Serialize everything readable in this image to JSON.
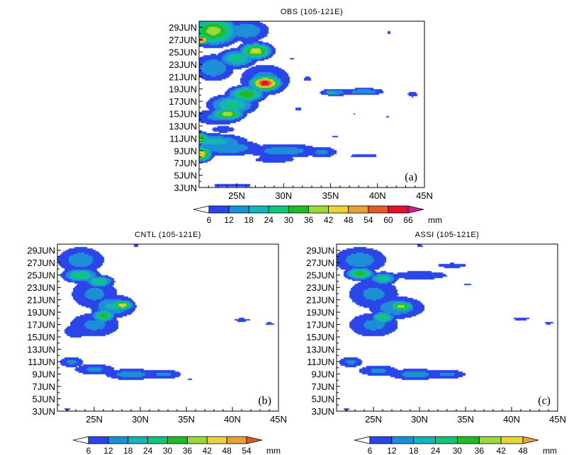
{
  "figure": {
    "colors": {
      "levels": [
        "#2b46e8",
        "#1e8fd6",
        "#14b4b8",
        "#10c47c",
        "#22b826",
        "#9bd93a",
        "#e8d43a",
        "#e8a038",
        "#e05a28",
        "#e0132c",
        "#d81b8c"
      ]
    },
    "panels": [
      {
        "id": "a",
        "title": "OBS (105-121E)",
        "label": "(a)",
        "y_ticks": [
          "3JUN",
          "5JUN",
          "7JUN",
          "9JUN",
          "11JUN",
          "13JUN",
          "15JUN",
          "17JUN",
          "19JUN",
          "21JUN",
          "23JUN",
          "25JUN",
          "27JUN",
          "29JUN"
        ],
        "x_ticks": [
          "25N",
          "30N",
          "35N",
          "40N",
          "45N"
        ],
        "colorbar": {
          "labels": [
            "6",
            "12",
            "18",
            "24",
            "30",
            "36",
            "42",
            "48",
            "54",
            "60",
            "66"
          ],
          "unit": "mm"
        }
      },
      {
        "id": "b",
        "title": "CNTL (105-121E)",
        "label": "(b)",
        "y_ticks": [
          "3JUN",
          "5JUN",
          "7JUN",
          "9JUN",
          "11JUN",
          "13JUN",
          "15JUN",
          "17JUN",
          "19JUN",
          "21JUN",
          "23JUN",
          "25JUN",
          "27JUN",
          "29JUN"
        ],
        "x_ticks": [
          "25N",
          "30N",
          "35N",
          "40N",
          "45N"
        ],
        "colorbar": {
          "labels": [
            "6",
            "12",
            "18",
            "24",
            "30",
            "36",
            "42",
            "48",
            "54"
          ],
          "unit": "mm"
        }
      },
      {
        "id": "c",
        "title": "ASSI (105-121E)",
        "label": "(c)",
        "y_ticks": [
          "3JUN",
          "5JUN",
          "7JUN",
          "9JUN",
          "11JUN",
          "13JUN",
          "15JUN",
          "17JUN",
          "19JUN",
          "21JUN",
          "23JUN",
          "25JUN",
          "27JUN",
          "29JUN"
        ],
        "x_ticks": [
          "25N",
          "30N",
          "35N",
          "40N",
          "45N"
        ],
        "colorbar": {
          "labels": [
            "6",
            "12",
            "18",
            "24",
            "30",
            "36",
            "42",
            "48"
          ],
          "unit": "mm"
        }
      }
    ]
  },
  "chart_data": [
    {
      "type": "heatmap",
      "title": "OBS (105-121E)",
      "xlabel": "",
      "ylabel": "",
      "xlim": [
        21,
        45
      ],
      "ylim": [
        "3JUN",
        "30JUN"
      ],
      "levels": [
        6,
        12,
        18,
        24,
        30,
        36,
        42,
        48,
        54,
        60,
        66
      ],
      "unit": "mm",
      "blobs": [
        {
          "lat": 22.5,
          "day": 28.5,
          "dlat": 2.0,
          "dday": 1.8,
          "v": 40
        },
        {
          "lat": 21.0,
          "day": 27,
          "dlat": 0.9,
          "dday": 0.5,
          "v": 62
        },
        {
          "lat": 26.0,
          "day": 28.5,
          "dlat": 2.0,
          "dday": 1.5,
          "v": 18
        },
        {
          "lat": 27.0,
          "day": 25.2,
          "dlat": 1.3,
          "dday": 1.0,
          "v": 44
        },
        {
          "lat": 25.0,
          "day": 24.0,
          "dlat": 1.6,
          "dday": 1.2,
          "v": 26
        },
        {
          "lat": 22.5,
          "day": 22.5,
          "dlat": 1.8,
          "dday": 1.8,
          "v": 18
        },
        {
          "lat": 28.0,
          "day": 20.0,
          "dlat": 1.2,
          "dday": 0.9,
          "v": 66
        },
        {
          "lat": 28.0,
          "day": 20.5,
          "dlat": 2.3,
          "dday": 2.2,
          "v": 16
        },
        {
          "lat": 26.0,
          "day": 18.2,
          "dlat": 1.5,
          "dday": 1.0,
          "v": 36
        },
        {
          "lat": 24.5,
          "day": 16.5,
          "dlat": 2.0,
          "dday": 1.3,
          "v": 26
        },
        {
          "lat": 24.0,
          "day": 15.0,
          "dlat": 1.3,
          "dday": 0.8,
          "v": 42
        },
        {
          "lat": 23.0,
          "day": 14.5,
          "dlat": 2.5,
          "dday": 1.2,
          "v": 14
        },
        {
          "lat": 23.5,
          "day": 12.5,
          "dlat": 1.6,
          "dday": 0.7,
          "v": 9
        },
        {
          "lat": 22.5,
          "day": 10.5,
          "dlat": 2.8,
          "dday": 1.0,
          "v": 22
        },
        {
          "lat": 21.0,
          "day": 11.0,
          "dlat": 0.8,
          "dday": 0.8,
          "v": 40
        },
        {
          "lat": 21.0,
          "day": 8.5,
          "dlat": 1.0,
          "dday": 0.9,
          "v": 50
        },
        {
          "lat": 24.0,
          "day": 9.5,
          "dlat": 3.0,
          "dday": 1.1,
          "v": 18
        },
        {
          "lat": 30.0,
          "day": 9.0,
          "dlat": 3.5,
          "dday": 1.0,
          "v": 16
        },
        {
          "lat": 34.0,
          "day": 8.8,
          "dlat": 1.5,
          "dday": 0.8,
          "v": 14
        },
        {
          "lat": 29.0,
          "day": 7.6,
          "dlat": 2.5,
          "dday": 0.6,
          "v": 10
        },
        {
          "lat": 38.5,
          "day": 8.2,
          "dlat": 2.0,
          "dday": 0.4,
          "v": 9
        },
        {
          "lat": 24.5,
          "day": 3.4,
          "dlat": 3.5,
          "dday": 0.4,
          "v": 8
        },
        {
          "lat": 31.5,
          "day": 15.8,
          "dlat": 0.6,
          "dday": 0.35,
          "v": 8
        },
        {
          "lat": 35.5,
          "day": 18.5,
          "dlat": 1.5,
          "dday": 0.5,
          "v": 16
        },
        {
          "lat": 38.5,
          "day": 18.6,
          "dlat": 1.8,
          "dday": 0.5,
          "v": 18
        },
        {
          "lat": 35.0,
          "day": 18.5,
          "dlat": 0.6,
          "dday": 0.3,
          "v": 26
        },
        {
          "lat": 43.7,
          "day": 18.2,
          "dlat": 0.7,
          "dday": 0.6,
          "v": 9
        },
        {
          "lat": 32.5,
          "day": 20.7,
          "dlat": 0.7,
          "dday": 0.5,
          "v": 8
        },
        {
          "lat": 30.8,
          "day": 24.0,
          "dlat": 0.5,
          "dday": 0.25,
          "v": 7
        },
        {
          "lat": 41.2,
          "day": 28.2,
          "dlat": 0.4,
          "dday": 0.3,
          "v": 8
        },
        {
          "lat": 37.5,
          "day": 14.9,
          "dlat": 0.5,
          "dday": 0.25,
          "v": 7
        },
        {
          "lat": 41.0,
          "day": 14.6,
          "dlat": 0.4,
          "dday": 0.25,
          "v": 7
        },
        {
          "lat": 35.5,
          "day": 11.4,
          "dlat": 1.0,
          "dday": 0.2,
          "v": 7
        }
      ]
    },
    {
      "type": "heatmap",
      "title": "CNTL (105-121E)",
      "xlabel": "",
      "ylabel": "",
      "xlim": [
        21,
        45
      ],
      "ylim": [
        "3JUN",
        "30JUN"
      ],
      "levels": [
        6,
        12,
        18,
        24,
        30,
        36,
        42,
        48,
        54
      ],
      "unit": "mm",
      "gap_days": [
        13.0,
        14.0
      ],
      "blobs": [
        {
          "lat": 23.5,
          "day": 27.5,
          "dlat": 2.2,
          "dday": 1.8,
          "v": 16
        },
        {
          "lat": 23.5,
          "day": 25.0,
          "dlat": 1.5,
          "dday": 0.9,
          "v": 30
        },
        {
          "lat": 25.5,
          "day": 24.0,
          "dlat": 1.2,
          "dday": 0.8,
          "v": 28
        },
        {
          "lat": 25.0,
          "day": 22.0,
          "dlat": 2.3,
          "dday": 2.2,
          "v": 14
        },
        {
          "lat": 28.0,
          "day": 20.2,
          "dlat": 0.9,
          "dday": 0.6,
          "v": 46
        },
        {
          "lat": 27.0,
          "day": 20.0,
          "dlat": 2.0,
          "dday": 1.5,
          "v": 20
        },
        {
          "lat": 26.0,
          "day": 18.5,
          "dlat": 1.0,
          "dday": 0.8,
          "v": 34
        },
        {
          "lat": 25.0,
          "day": 17.0,
          "dlat": 2.5,
          "dday": 1.8,
          "v": 14
        },
        {
          "lat": 23.0,
          "day": 16.0,
          "dlat": 1.5,
          "dday": 1.3,
          "v": 10
        },
        {
          "lat": 22.5,
          "day": 11.0,
          "dlat": 1.2,
          "dday": 0.8,
          "v": 14
        },
        {
          "lat": 25.0,
          "day": 9.8,
          "dlat": 2.0,
          "dday": 0.8,
          "v": 14
        },
        {
          "lat": 29.0,
          "day": 9.0,
          "dlat": 2.5,
          "dday": 0.8,
          "v": 16
        },
        {
          "lat": 32.5,
          "day": 9.0,
          "dlat": 1.8,
          "dday": 0.7,
          "v": 14
        },
        {
          "lat": 35.3,
          "day": 8.2,
          "dlat": 0.5,
          "dday": 0.3,
          "v": 7
        },
        {
          "lat": 22.0,
          "day": 3.3,
          "dlat": 1.0,
          "dday": 0.3,
          "v": 7
        },
        {
          "lat": 41.0,
          "day": 17.8,
          "dlat": 1.2,
          "dday": 0.35,
          "v": 9
        },
        {
          "lat": 44.0,
          "day": 17.2,
          "dlat": 0.8,
          "dday": 0.3,
          "v": 8
        },
        {
          "lat": 29.5,
          "day": 29.8,
          "dlat": 0.4,
          "dday": 0.3,
          "v": 8
        },
        {
          "lat": 30.6,
          "day": 25.0,
          "dlat": 0.3,
          "dday": 0.2,
          "v": 7
        }
      ]
    },
    {
      "type": "heatmap",
      "title": "ASSI (105-121E)",
      "xlabel": "",
      "ylabel": "",
      "xlim": [
        21,
        45
      ],
      "ylim": [
        "3JUN",
        "30JUN"
      ],
      "levels": [
        6,
        12,
        18,
        24,
        30,
        36,
        42,
        48
      ],
      "unit": "mm",
      "gap_days": [
        13.0,
        14.0
      ],
      "blobs": [
        {
          "lat": 23.5,
          "day": 27.5,
          "dlat": 2.5,
          "dday": 1.8,
          "v": 16
        },
        {
          "lat": 23.5,
          "day": 25.3,
          "dlat": 1.2,
          "dday": 0.8,
          "v": 34
        },
        {
          "lat": 26.0,
          "day": 24.5,
          "dlat": 1.2,
          "dday": 0.8,
          "v": 26
        },
        {
          "lat": 25.0,
          "day": 22.0,
          "dlat": 2.5,
          "dday": 2.2,
          "v": 14
        },
        {
          "lat": 28.0,
          "day": 20.0,
          "dlat": 1.0,
          "dday": 0.6,
          "v": 42
        },
        {
          "lat": 27.5,
          "day": 19.8,
          "dlat": 2.5,
          "dday": 1.5,
          "v": 18
        },
        {
          "lat": 26.0,
          "day": 18.2,
          "dlat": 1.0,
          "dday": 0.8,
          "v": 30
        },
        {
          "lat": 25.0,
          "day": 17.0,
          "dlat": 2.5,
          "dday": 1.8,
          "v": 14
        },
        {
          "lat": 30.0,
          "day": 25.0,
          "dlat": 4.0,
          "dday": 0.9,
          "v": 9
        },
        {
          "lat": 33.5,
          "day": 26.6,
          "dlat": 2.5,
          "dday": 0.6,
          "v": 8
        },
        {
          "lat": 22.5,
          "day": 11.0,
          "dlat": 1.2,
          "dday": 0.8,
          "v": 14
        },
        {
          "lat": 25.5,
          "day": 9.6,
          "dlat": 2.0,
          "dday": 0.8,
          "v": 14
        },
        {
          "lat": 29.5,
          "day": 9.0,
          "dlat": 2.5,
          "dday": 0.8,
          "v": 16
        },
        {
          "lat": 33.0,
          "day": 9.0,
          "dlat": 1.8,
          "dday": 0.7,
          "v": 14
        },
        {
          "lat": 22.0,
          "day": 3.3,
          "dlat": 1.0,
          "dday": 0.3,
          "v": 7
        },
        {
          "lat": 41.0,
          "day": 18.0,
          "dlat": 1.2,
          "dday": 0.35,
          "v": 9
        },
        {
          "lat": 44.0,
          "day": 17.3,
          "dlat": 0.8,
          "dday": 0.3,
          "v": 8
        },
        {
          "lat": 35.2,
          "day": 23.6,
          "dlat": 0.7,
          "dday": 0.25,
          "v": 8
        },
        {
          "lat": 30.0,
          "day": 29.8,
          "dlat": 0.5,
          "dday": 0.3,
          "v": 8
        }
      ]
    }
  ]
}
